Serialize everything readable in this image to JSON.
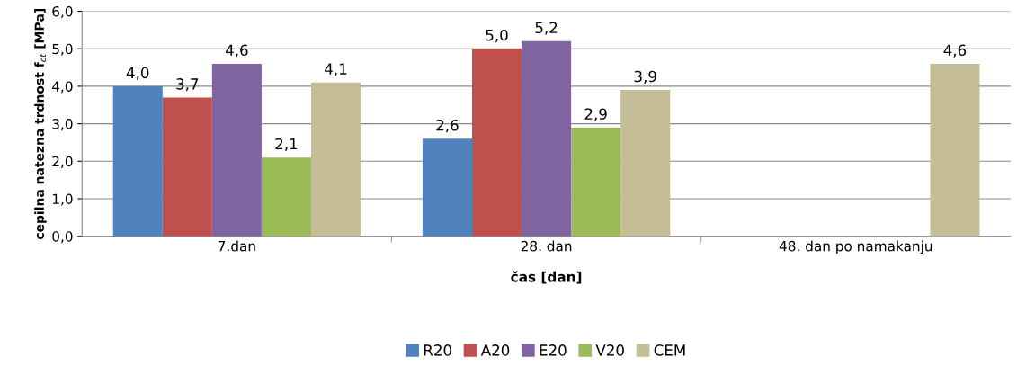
{
  "chart_data": {
    "type": "bar",
    "xlabel": "čas [dan]",
    "ylabel": "cepilna natezna trdnost f$_{ct}$ [MPa]",
    "categories": [
      "7.dan",
      "28. dan",
      "48. dan po namakanju"
    ],
    "series": [
      {
        "name": "R20",
        "color": "#4f81bd",
        "values": [
          4.0,
          2.6,
          null
        ],
        "value_labels": [
          "4,0",
          "2,6",
          null
        ]
      },
      {
        "name": "A20",
        "color": "#c0504d",
        "values": [
          3.7,
          5.0,
          null
        ],
        "value_labels": [
          "3,7",
          "5,0",
          null
        ]
      },
      {
        "name": "E20",
        "color": "#8064a2",
        "values": [
          4.6,
          5.2,
          null
        ],
        "value_labels": [
          "4,6",
          "5,2",
          null
        ]
      },
      {
        "name": "V20",
        "color": "#9bbb59",
        "values": [
          2.1,
          2.9,
          null
        ],
        "value_labels": [
          "2,1",
          "2,9",
          null
        ]
      },
      {
        "name": "CEM",
        "color": "#c4bd97",
        "values": [
          4.1,
          3.9,
          4.6
        ],
        "value_labels": [
          "4,1",
          "3,9",
          "4,6"
        ]
      }
    ],
    "ylim": [
      0,
      6
    ],
    "yticks": [
      {
        "value": 0,
        "label": "0,0"
      },
      {
        "value": 1,
        "label": "1,0"
      },
      {
        "value": 2,
        "label": "2,0"
      },
      {
        "value": 3,
        "label": "3,0"
      },
      {
        "value": 4,
        "label": "4,0"
      },
      {
        "value": 5,
        "label": "5,0"
      },
      {
        "value": 6,
        "label": "6,0"
      }
    ],
    "grid": "y",
    "legend": "bottom"
  }
}
